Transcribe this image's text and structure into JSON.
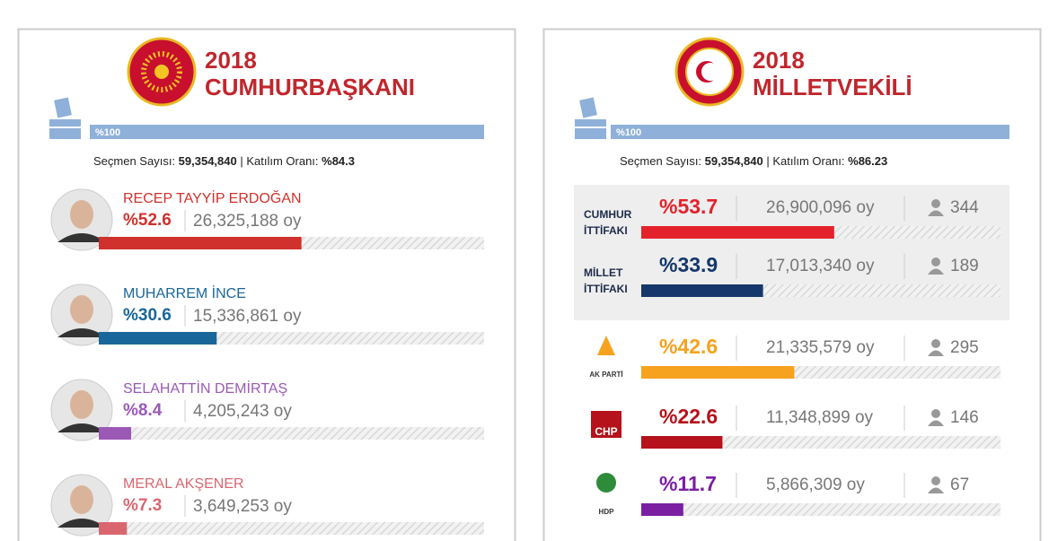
{
  "president": {
    "year": "2018",
    "title": "CUMHURBAŞKANI",
    "counted": {
      "value": 100,
      "label": "%100"
    },
    "stats": {
      "voters_label": "Seçmen Sayısı:",
      "voters": "59,354,840",
      "turnout_label": "| Katılım Oranı:",
      "turnout": "%84.3"
    },
    "candidates": [
      {
        "name": "RECEP TAYYİP ERDOĞAN",
        "percent": {
          "value": 52.6,
          "label": "%52.6"
        },
        "votes": "26,325,188 oy",
        "color": "#d0312d"
      },
      {
        "name": "MUHARREM İNCE",
        "percent": {
          "value": 30.6,
          "label": "%30.6"
        },
        "votes": "15,336,861 oy",
        "color": "#19669a"
      },
      {
        "name": "SELAHATTİN DEMİRTAŞ",
        "percent": {
          "value": 8.4,
          "label": "%8.4"
        },
        "votes": "4,205,243 oy",
        "color": "#9b59b6"
      },
      {
        "name": "MERAL AKŞENER",
        "percent": {
          "value": 7.3,
          "label": "%7.3"
        },
        "votes": "3,649,253 oy",
        "color": "#d9666f"
      }
    ]
  },
  "parliament": {
    "year": "2018",
    "title": "MİLLETVEKİLİ",
    "counted": {
      "value": 100,
      "label": "%100"
    },
    "stats": {
      "voters_label": "Seçmen Sayısı:",
      "voters": "59,354,840",
      "turnout_label": "| Katılım Oranı:",
      "turnout": "%86.23"
    },
    "alliances": [
      {
        "name": [
          "CUMHUR",
          "İTTİFAKI"
        ],
        "percent": {
          "value": 53.7,
          "label": "%53.7"
        },
        "votes": "26,900,096 oy",
        "seats": 344,
        "color": "#e3222b"
      },
      {
        "name": [
          "MİLLET",
          "İTTİFAKI"
        ],
        "percent": {
          "value": 33.9,
          "label": "%33.9"
        },
        "votes": "17,013,340 oy",
        "seats": 189,
        "color": "#15376b"
      }
    ],
    "parties": [
      {
        "logo": "AK PARTİ",
        "percent": {
          "value": 42.6,
          "label": "%42.6"
        },
        "votes": "21,335,579 oy",
        "seats": 295,
        "color": "#f6a21e"
      },
      {
        "logo": "CHP",
        "percent": {
          "value": 22.6,
          "label": "%22.6"
        },
        "votes": "11,348,899 oy",
        "seats": 146,
        "color": "#b5121b"
      },
      {
        "logo": "HDP",
        "percent": {
          "value": 11.7,
          "label": "%11.7"
        },
        "votes": "5,866,309 oy",
        "seats": 67,
        "color": "#7b1fa2"
      }
    ]
  }
}
